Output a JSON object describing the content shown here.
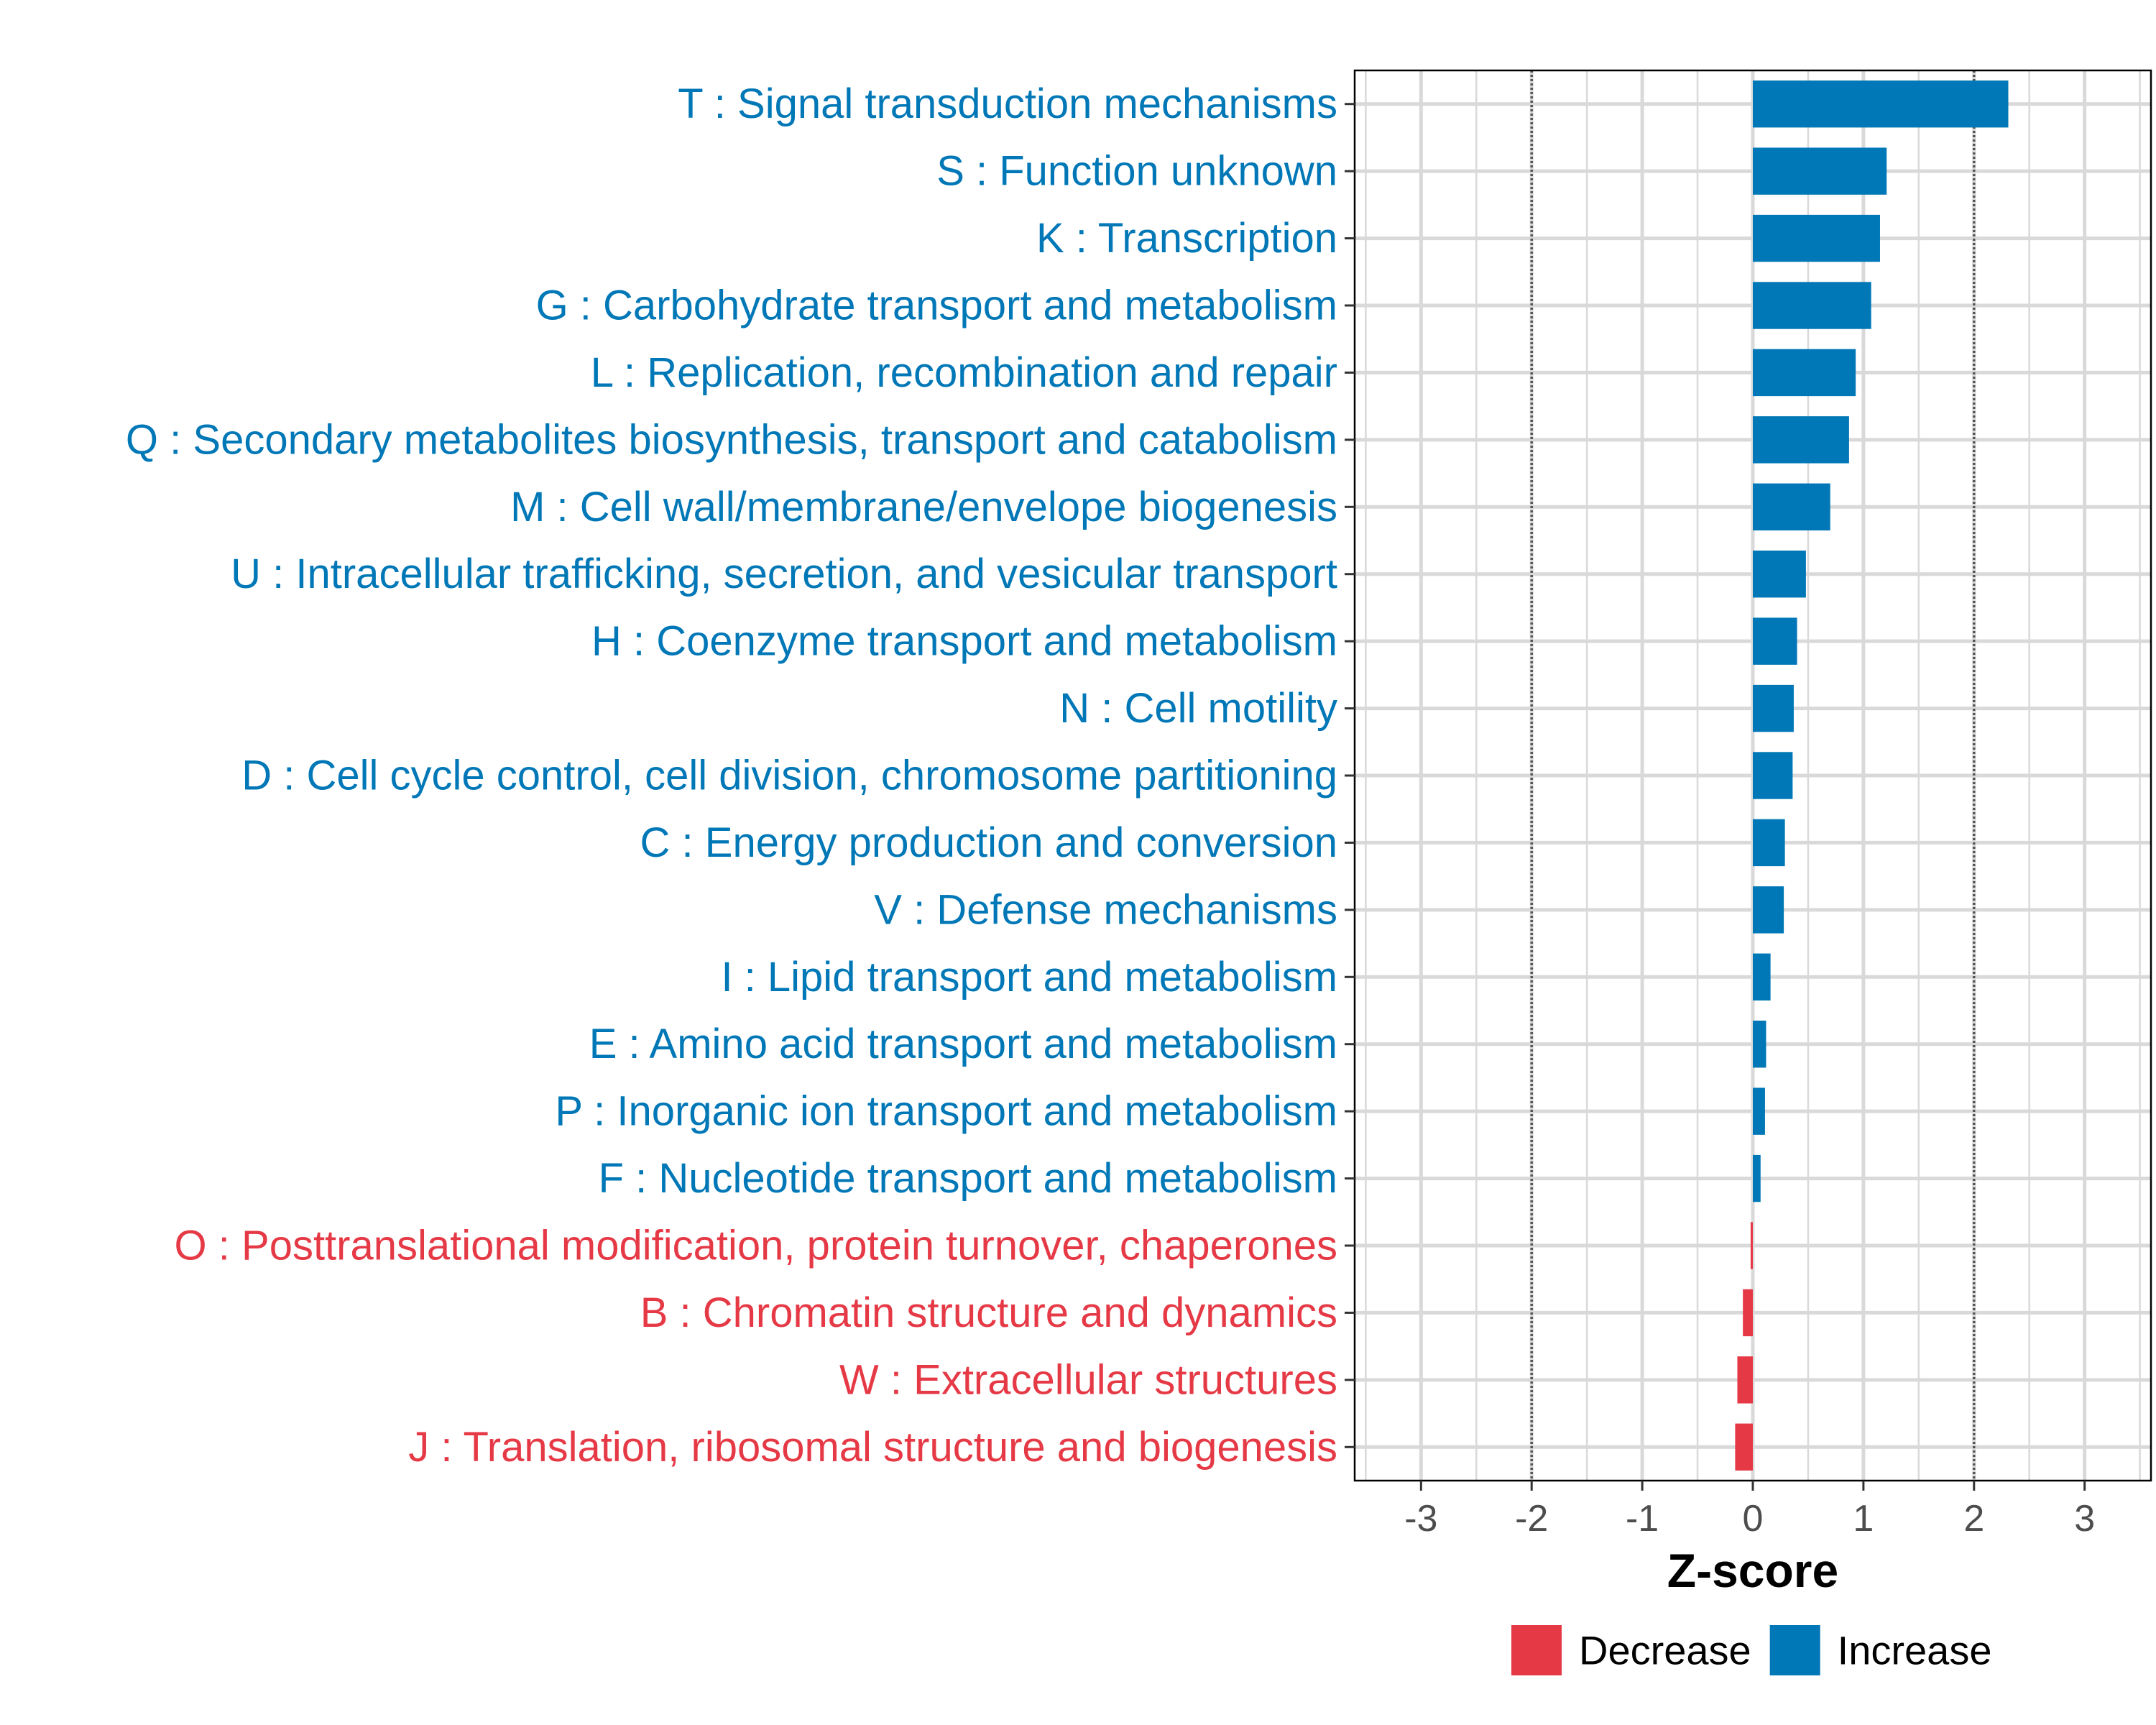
{
  "chart_data": {
    "type": "bar",
    "orientation": "horizontal",
    "title": "",
    "xlabel": "Z-score",
    "ylabel": "",
    "xlim": [
      -3.6,
      3.6
    ],
    "xticks": [
      "-3",
      "-2",
      "-1",
      "0",
      "1",
      "2",
      "3"
    ],
    "xtick_values": [
      -3,
      -2,
      -1,
      0,
      1,
      2,
      3
    ],
    "threshold_lines": [
      -2,
      2
    ],
    "grid": true,
    "categories": [
      "T : Signal transduction mechanisms",
      "S : Function unknown",
      "K : Transcription",
      "G : Carbohydrate transport and metabolism",
      "L : Replication, recombination and repair",
      "Q : Secondary metabolites biosynthesis, transport and catabolism",
      "M : Cell wall/membrane/envelope biogenesis",
      "U : Intracellular trafficking, secretion, and vesicular transport",
      "H : Coenzyme transport and metabolism",
      "N : Cell motility",
      "D : Cell cycle control, cell division, chromosome partitioning",
      "C : Energy production and conversion",
      "V : Defense mechanisms",
      "I : Lipid transport and metabolism",
      "E : Amino acid transport and metabolism",
      "P : Inorganic ion transport and metabolism",
      "F : Nucleotide transport and metabolism",
      "O : Posttranslational modification, protein turnover, chaperones",
      "B : Chromatin structure and dynamics",
      "W : Extracellular structures",
      "J : Translation, ribosomal structure and biogenesis"
    ],
    "values": [
      2.31,
      1.21,
      1.15,
      1.07,
      0.93,
      0.87,
      0.7,
      0.48,
      0.4,
      0.37,
      0.36,
      0.29,
      0.28,
      0.16,
      0.12,
      0.11,
      0.07,
      -0.02,
      -0.09,
      -0.14,
      -0.16
    ],
    "groups": [
      "Increase",
      "Increase",
      "Increase",
      "Increase",
      "Increase",
      "Increase",
      "Increase",
      "Increase",
      "Increase",
      "Increase",
      "Increase",
      "Increase",
      "Increase",
      "Increase",
      "Increase",
      "Increase",
      "Increase",
      "Decrease",
      "Decrease",
      "Decrease",
      "Decrease"
    ],
    "legend": {
      "position": "bottom",
      "entries": [
        {
          "label": "Decrease",
          "color": "#e63946"
        },
        {
          "label": "Increase",
          "color": "#0077b6"
        }
      ]
    },
    "colors": {
      "Increase": "#0077b6",
      "Decrease": "#e63946",
      "grid": "#d9d9d9",
      "threshold": "#555555",
      "frame": "#000000"
    }
  }
}
